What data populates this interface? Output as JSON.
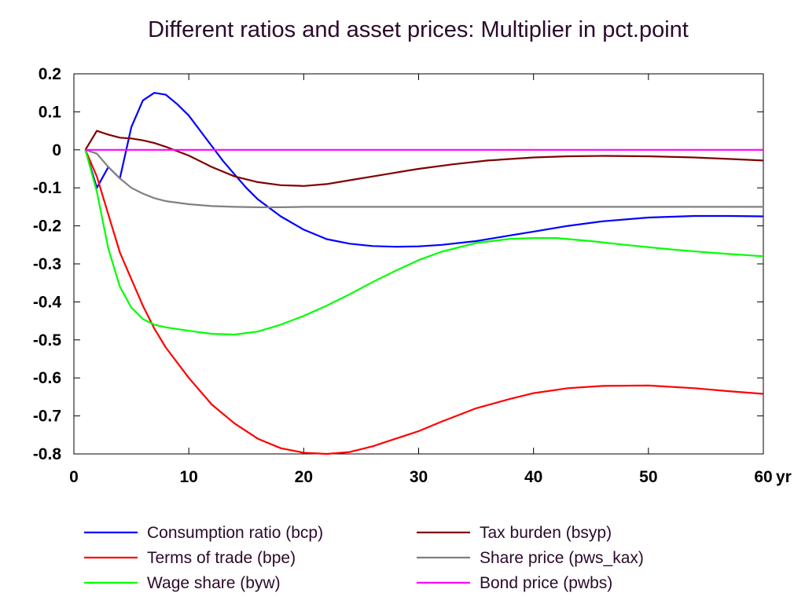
{
  "chart_data": {
    "type": "line",
    "title": "Different ratios and asset prices: Multiplier in pct.point",
    "xlabel": "",
    "ylabel": "",
    "x_unit_label": "yr",
    "xlim": [
      0,
      60
    ],
    "ylim": [
      -0.8,
      0.2
    ],
    "x_ticks": [
      0,
      10,
      20,
      30,
      40,
      50,
      60
    ],
    "x_tick_labels": [
      "0",
      "10",
      "20",
      "30",
      "40",
      "50",
      "60"
    ],
    "y_ticks": [
      0.2,
      0.1,
      0,
      -0.1,
      -0.2,
      -0.3,
      -0.4,
      -0.5,
      -0.6,
      -0.7,
      -0.8
    ],
    "y_tick_labels": [
      "0.2",
      "0.1",
      "0",
      "-0.1",
      "-0.2",
      "-0.3",
      "-0.4",
      "-0.5",
      "-0.6",
      "-0.7",
      "-0.8"
    ],
    "grid": false,
    "legend_position": "bottom",
    "series": [
      {
        "name": "Consumption ratio (bcp)",
        "color": "#0000ff",
        "points": [
          [
            1,
            0
          ],
          [
            2,
            -0.1
          ],
          [
            3,
            -0.045
          ],
          [
            4,
            -0.075
          ],
          [
            5,
            0.06
          ],
          [
            6,
            0.13
          ],
          [
            7,
            0.15
          ],
          [
            8,
            0.145
          ],
          [
            9,
            0.12
          ],
          [
            10,
            0.09
          ],
          [
            11,
            0.05
          ],
          [
            12,
            0.01
          ],
          [
            13,
            -0.03
          ],
          [
            14,
            -0.065
          ],
          [
            15,
            -0.1
          ],
          [
            16,
            -0.13
          ],
          [
            18,
            -0.175
          ],
          [
            20,
            -0.21
          ],
          [
            22,
            -0.235
          ],
          [
            24,
            -0.247
          ],
          [
            26,
            -0.253
          ],
          [
            28,
            -0.255
          ],
          [
            30,
            -0.254
          ],
          [
            32,
            -0.25
          ],
          [
            35,
            -0.24
          ],
          [
            38,
            -0.225
          ],
          [
            40,
            -0.215
          ],
          [
            43,
            -0.2
          ],
          [
            46,
            -0.188
          ],
          [
            50,
            -0.178
          ],
          [
            54,
            -0.174
          ],
          [
            57,
            -0.174
          ],
          [
            60,
            -0.175
          ]
        ]
      },
      {
        "name": "Terms of trade (bpe)",
        "color": "#ff0000",
        "points": [
          [
            1,
            0
          ],
          [
            2,
            -0.07
          ],
          [
            3,
            -0.17
          ],
          [
            4,
            -0.27
          ],
          [
            5,
            -0.34
          ],
          [
            6,
            -0.41
          ],
          [
            7,
            -0.47
          ],
          [
            8,
            -0.52
          ],
          [
            10,
            -0.6
          ],
          [
            12,
            -0.67
          ],
          [
            14,
            -0.72
          ],
          [
            16,
            -0.76
          ],
          [
            18,
            -0.785
          ],
          [
            20,
            -0.797
          ],
          [
            22,
            -0.8
          ],
          [
            24,
            -0.795
          ],
          [
            26,
            -0.78
          ],
          [
            28,
            -0.76
          ],
          [
            30,
            -0.74
          ],
          [
            32,
            -0.715
          ],
          [
            35,
            -0.68
          ],
          [
            38,
            -0.655
          ],
          [
            40,
            -0.64
          ],
          [
            43,
            -0.627
          ],
          [
            46,
            -0.621
          ],
          [
            50,
            -0.62
          ],
          [
            54,
            -0.627
          ],
          [
            57,
            -0.635
          ],
          [
            60,
            -0.642
          ]
        ]
      },
      {
        "name": "Wage share (byw)",
        "color": "#00ff00",
        "points": [
          [
            1,
            0
          ],
          [
            2,
            -0.11
          ],
          [
            3,
            -0.26
          ],
          [
            4,
            -0.36
          ],
          [
            5,
            -0.415
          ],
          [
            6,
            -0.445
          ],
          [
            7,
            -0.46
          ],
          [
            8,
            -0.467
          ],
          [
            10,
            -0.476
          ],
          [
            12,
            -0.484
          ],
          [
            14,
            -0.486
          ],
          [
            16,
            -0.478
          ],
          [
            18,
            -0.46
          ],
          [
            20,
            -0.437
          ],
          [
            22,
            -0.41
          ],
          [
            24,
            -0.38
          ],
          [
            26,
            -0.348
          ],
          [
            28,
            -0.318
          ],
          [
            30,
            -0.29
          ],
          [
            32,
            -0.268
          ],
          [
            35,
            -0.245
          ],
          [
            38,
            -0.234
          ],
          [
            40,
            -0.232
          ],
          [
            42,
            -0.232
          ],
          [
            45,
            -0.24
          ],
          [
            48,
            -0.25
          ],
          [
            52,
            -0.262
          ],
          [
            56,
            -0.272
          ],
          [
            60,
            -0.28
          ]
        ]
      },
      {
        "name": "Tax burden (bsyp)",
        "color": "#800000",
        "points": [
          [
            1,
            0
          ],
          [
            2,
            0.05
          ],
          [
            3,
            0.04
          ],
          [
            4,
            0.032
          ],
          [
            5,
            0.03
          ],
          [
            6,
            0.025
          ],
          [
            7,
            0.018
          ],
          [
            8,
            0.008
          ],
          [
            10,
            -0.015
          ],
          [
            12,
            -0.045
          ],
          [
            14,
            -0.07
          ],
          [
            16,
            -0.085
          ],
          [
            18,
            -0.093
          ],
          [
            20,
            -0.095
          ],
          [
            22,
            -0.09
          ],
          [
            24,
            -0.08
          ],
          [
            26,
            -0.07
          ],
          [
            28,
            -0.06
          ],
          [
            30,
            -0.05
          ],
          [
            33,
            -0.038
          ],
          [
            36,
            -0.028
          ],
          [
            40,
            -0.02
          ],
          [
            43,
            -0.017
          ],
          [
            46,
            -0.016
          ],
          [
            50,
            -0.017
          ],
          [
            54,
            -0.02
          ],
          [
            57,
            -0.024
          ],
          [
            60,
            -0.028
          ]
        ]
      },
      {
        "name": "Share price (pws_kax)",
        "color": "#808080",
        "points": [
          [
            1,
            0
          ],
          [
            2,
            -0.01
          ],
          [
            3,
            -0.045
          ],
          [
            4,
            -0.075
          ],
          [
            5,
            -0.1
          ],
          [
            6,
            -0.115
          ],
          [
            7,
            -0.127
          ],
          [
            8,
            -0.135
          ],
          [
            10,
            -0.143
          ],
          [
            12,
            -0.148
          ],
          [
            14,
            -0.15
          ],
          [
            16,
            -0.151
          ],
          [
            18,
            -0.151
          ],
          [
            20,
            -0.15
          ],
          [
            25,
            -0.15
          ],
          [
            30,
            -0.15
          ],
          [
            40,
            -0.15
          ],
          [
            50,
            -0.15
          ],
          [
            60,
            -0.15
          ]
        ]
      },
      {
        "name": "Bond price (pwbs)",
        "color": "#ff00ff",
        "points": [
          [
            1,
            0
          ],
          [
            60,
            0
          ]
        ]
      }
    ]
  }
}
